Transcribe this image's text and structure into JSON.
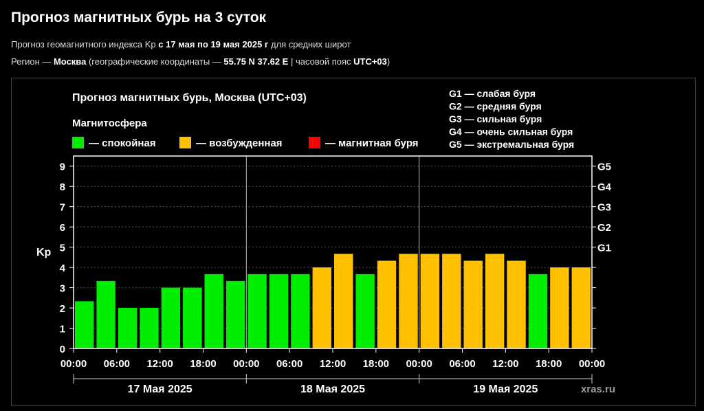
{
  "page": {
    "title": "Прогноз магнитных бурь на 3 суток",
    "subtitle1": {
      "a": "Прогноз геомагнитного индекса Kp ",
      "b": "с 17 мая по 19 мая 2025 г",
      "c": " для средних широт"
    },
    "subtitle2": {
      "a": "Регион — ",
      "b": "Москва",
      "c": " (географические координаты — ",
      "d": "55.75 N 37.62 E",
      "e": " | часовой пояс ",
      "f": "UTC+03",
      "g": ")"
    }
  },
  "colors": {
    "quiet": "#00ee00",
    "excited": "#ffc000",
    "storm": "#ff0000",
    "plot_bg": "#000000",
    "frame": "#ffffff"
  },
  "chart_data": {
    "type": "bar",
    "title": "Прогноз магнитных бурь, Москва (UTC+03)",
    "legend_title": "Магнитосфера",
    "legend": [
      {
        "key": "quiet",
        "label": "— спокойная"
      },
      {
        "key": "excited",
        "label": "— возбужденная"
      },
      {
        "key": "storm",
        "label": "— магнитная буря"
      }
    ],
    "g_legend": [
      "G1 — слабая буря",
      "G2 — средняя буря",
      "G3 — сильная буря",
      "G4 — очень сильная буря",
      "G5 — экстремальная буря"
    ],
    "ylabel": "Kp",
    "ylim": [
      0,
      9.5
    ],
    "y_ticks": [
      0,
      1,
      2,
      3,
      4,
      5,
      6,
      7,
      8,
      9
    ],
    "g_ticks": [
      {
        "value": 5,
        "label": "G1"
      },
      {
        "value": 6,
        "label": "G2"
      },
      {
        "value": 7,
        "label": "G3"
      },
      {
        "value": 8,
        "label": "G4"
      },
      {
        "value": 9,
        "label": "G5"
      }
    ],
    "x_ticks": [
      "00:00",
      "06:00",
      "12:00",
      "18:00",
      "00:00",
      "06:00",
      "12:00",
      "18:00",
      "00:00",
      "06:00",
      "12:00",
      "18:00",
      "00:00"
    ],
    "days": [
      "17 Мая 2025",
      "18 Мая 2025",
      "19 Мая 2025"
    ],
    "values": [
      2.33,
      3.33,
      2.0,
      2.0,
      3.0,
      3.0,
      3.67,
      3.33,
      3.67,
      3.67,
      3.67,
      4.0,
      4.67,
      3.67,
      4.33,
      4.67,
      4.67,
      4.67,
      4.33,
      4.67,
      4.33,
      3.67,
      4.0,
      4.0
    ],
    "levels": [
      "quiet",
      "quiet",
      "quiet",
      "quiet",
      "quiet",
      "quiet",
      "quiet",
      "quiet",
      "quiet",
      "quiet",
      "quiet",
      "excited",
      "excited",
      "quiet",
      "excited",
      "excited",
      "excited",
      "excited",
      "excited",
      "excited",
      "excited",
      "quiet",
      "excited",
      "excited"
    ],
    "grid": true,
    "watermark": "xras.ru"
  }
}
